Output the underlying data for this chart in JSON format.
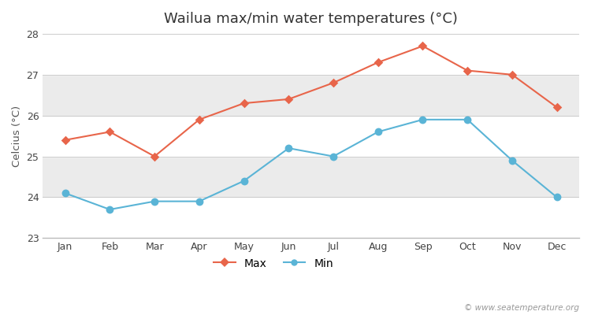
{
  "title": "Wailua max/min water temperatures (°C)",
  "ylabel": "Celcius (°C)",
  "months": [
    "Jan",
    "Feb",
    "Mar",
    "Apr",
    "May",
    "Jun",
    "Jul",
    "Aug",
    "Sep",
    "Oct",
    "Nov",
    "Dec"
  ],
  "max_values": [
    25.4,
    25.6,
    25.0,
    25.9,
    26.3,
    26.4,
    26.8,
    27.3,
    27.7,
    27.1,
    27.0,
    26.2
  ],
  "min_values": [
    24.1,
    23.7,
    23.9,
    23.9,
    24.4,
    25.2,
    25.0,
    25.6,
    25.9,
    25.9,
    24.9,
    24.0
  ],
  "max_color": "#e8654a",
  "min_color": "#5ab4d6",
  "bg_color": "#ffffff",
  "plot_bg_color": "#ffffff",
  "band_light": "#ebebeb",
  "band_dark": "#e0e0e0",
  "ylim": [
    23,
    28
  ],
  "yticks": [
    23,
    24,
    25,
    26,
    27,
    28
  ],
  "watermark": "© www.seatemperature.org",
  "title_fontsize": 13,
  "label_fontsize": 9.5,
  "tick_fontsize": 9,
  "legend_fontsize": 10
}
